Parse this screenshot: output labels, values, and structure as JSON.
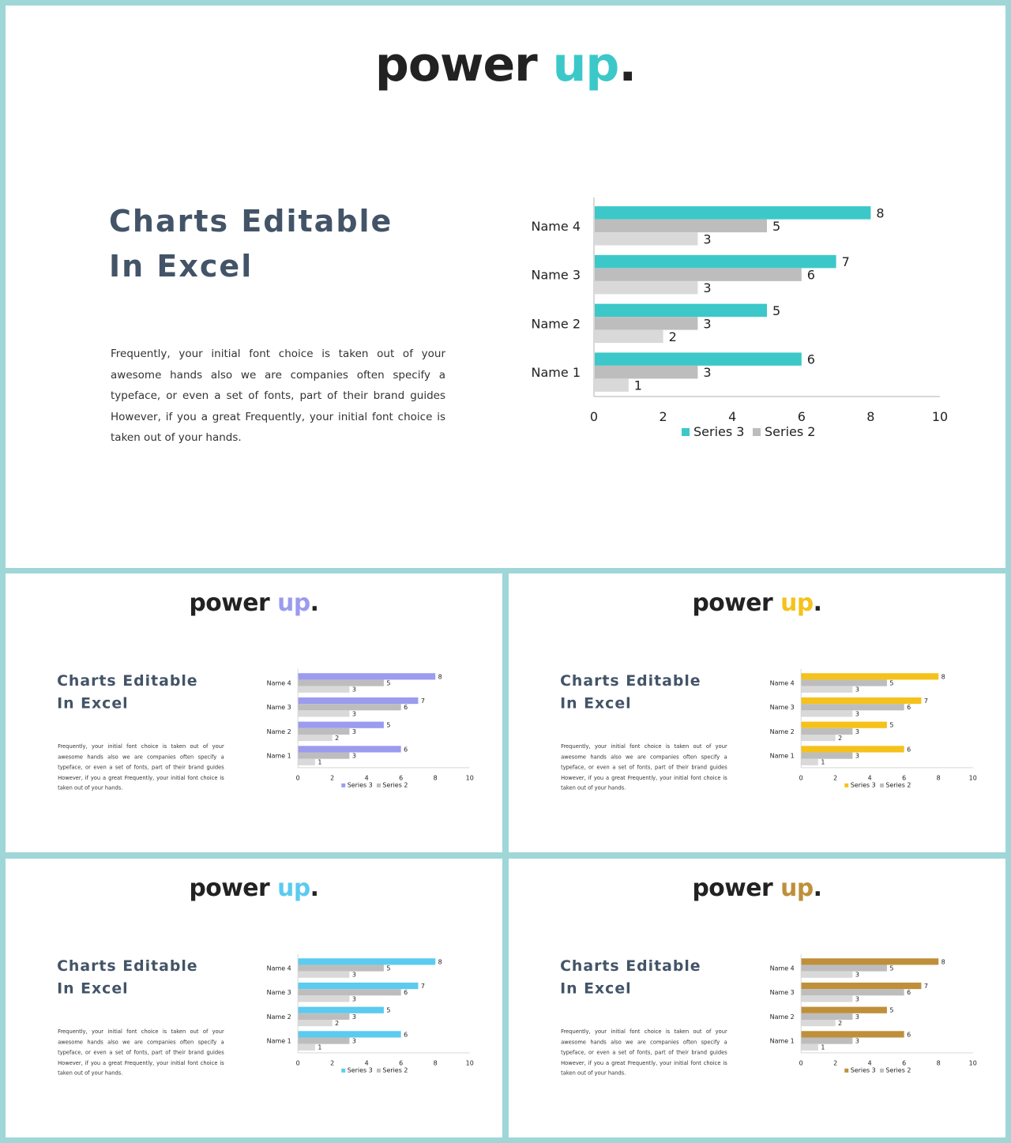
{
  "brand": {
    "word": "power",
    "accent_word": "up",
    "dot": "."
  },
  "heading": {
    "line1": "Charts Editable",
    "line2": "In Excel"
  },
  "body": "Frequently, your initial font choice is taken out of your awesome hands also we are companies often specify a typeface, or even a set of fonts,  part of their brand guides However, if you a great Frequently, your initial font choice is taken out of your hands.",
  "slides": [
    {
      "accent": "#3cc8c8"
    },
    {
      "accent": "#9b9bef"
    },
    {
      "accent": "#f5c21b"
    },
    {
      "accent": "#5bcbef"
    },
    {
      "accent": "#bf8f3a"
    }
  ],
  "chart_data": {
    "type": "bar",
    "orientation": "horizontal",
    "categories": [
      "Name 1",
      "Name 2",
      "Name 3",
      "Name 4"
    ],
    "series": [
      {
        "name": "Series 3",
        "values": [
          6,
          5,
          7,
          8
        ]
      },
      {
        "name": "Series 2",
        "values": [
          3,
          3,
          6,
          5
        ]
      },
      {
        "name": "",
        "values": [
          1,
          2,
          3,
          3
        ]
      }
    ],
    "xlim": [
      0,
      10
    ],
    "xticks": [
      0,
      2,
      4,
      6,
      8,
      10
    ],
    "grid": false,
    "legend": "bottom",
    "series_colors": [
      "accent",
      "#bdbdbd",
      "#d9d9d9"
    ]
  }
}
